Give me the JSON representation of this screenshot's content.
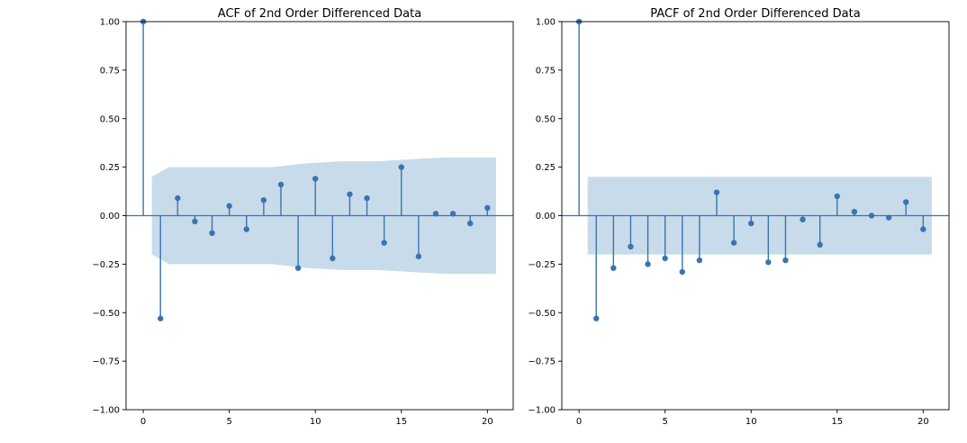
{
  "chart_data": [
    {
      "type": "stem",
      "title": "ACF of 2nd Order Differenced Data",
      "xlabel": "",
      "ylabel": "",
      "xlim": [
        -1,
        21.5
      ],
      "ylim": [
        -1.0,
        1.0
      ],
      "x_ticks": [
        0,
        5,
        10,
        15,
        20
      ],
      "x_tick_labels": [
        "0",
        "5",
        "10",
        "15",
        "20"
      ],
      "y_ticks": [
        1.0,
        0.75,
        0.5,
        0.25,
        0.0,
        -0.25,
        -0.5,
        -0.75,
        -1.0
      ],
      "y_tick_labels": [
        "1.00",
        "0.75",
        "0.50",
        "0.25",
        "0.00",
        "−0.25",
        "−0.50",
        "−0.75",
        "−1.00"
      ],
      "lags": [
        0,
        1,
        2,
        3,
        4,
        5,
        6,
        7,
        8,
        9,
        10,
        11,
        12,
        13,
        14,
        15,
        16,
        17,
        18,
        19,
        20
      ],
      "values": [
        1.0,
        -0.53,
        0.09,
        -0.03,
        -0.09,
        0.05,
        -0.07,
        0.08,
        0.16,
        -0.27,
        0.19,
        -0.22,
        0.11,
        0.09,
        -0.14,
        0.25,
        -0.21,
        0.01,
        0.01,
        -0.04,
        0.04
      ],
      "confidence_band": {
        "lags": [
          0.5,
          1.5,
          2.5,
          3.5,
          4.5,
          5.5,
          6.5,
          7.5,
          8.5,
          9.5,
          10.5,
          11.5,
          12.5,
          13.5,
          14.5,
          15.5,
          16.5,
          17.5,
          18.5,
          19.5,
          20.5
        ],
        "upper": [
          0.2,
          0.25,
          0.25,
          0.25,
          0.25,
          0.25,
          0.25,
          0.25,
          0.26,
          0.27,
          0.275,
          0.28,
          0.28,
          0.28,
          0.285,
          0.29,
          0.295,
          0.3,
          0.3,
          0.3,
          0.3
        ]
      },
      "colors": {
        "stem": "#3a74b0",
        "band": "#c8dbeb",
        "zero_line": "#3a74b0"
      }
    },
    {
      "type": "stem",
      "title": "PACF of 2nd Order Differenced Data",
      "xlabel": "",
      "ylabel": "",
      "xlim": [
        -1,
        21.5
      ],
      "ylim": [
        -1.0,
        1.0
      ],
      "x_ticks": [
        0,
        5,
        10,
        15,
        20
      ],
      "x_tick_labels": [
        "0",
        "5",
        "10",
        "15",
        "20"
      ],
      "y_ticks": [
        1.0,
        0.75,
        0.5,
        0.25,
        0.0,
        -0.25,
        -0.5,
        -0.75,
        -1.0
      ],
      "y_tick_labels": [
        "1.00",
        "0.75",
        "0.50",
        "0.25",
        "0.00",
        "−0.25",
        "−0.50",
        "−0.75",
        "−1.00"
      ],
      "lags": [
        0,
        1,
        2,
        3,
        4,
        5,
        6,
        7,
        8,
        9,
        10,
        11,
        12,
        13,
        14,
        15,
        16,
        17,
        18,
        19,
        20
      ],
      "values": [
        1.0,
        -0.53,
        -0.27,
        -0.16,
        -0.25,
        -0.22,
        -0.29,
        -0.23,
        0.12,
        -0.14,
        -0.04,
        -0.24,
        -0.23,
        -0.02,
        -0.15,
        0.1,
        0.02,
        0.0,
        -0.01,
        0.07,
        -0.07
      ],
      "confidence_band": {
        "lags": [
          0.5,
          20.5
        ],
        "upper": [
          0.2,
          0.2
        ]
      },
      "colors": {
        "stem": "#3a74b0",
        "band": "#c8dbeb",
        "zero_line": "#3a74b0"
      }
    }
  ]
}
